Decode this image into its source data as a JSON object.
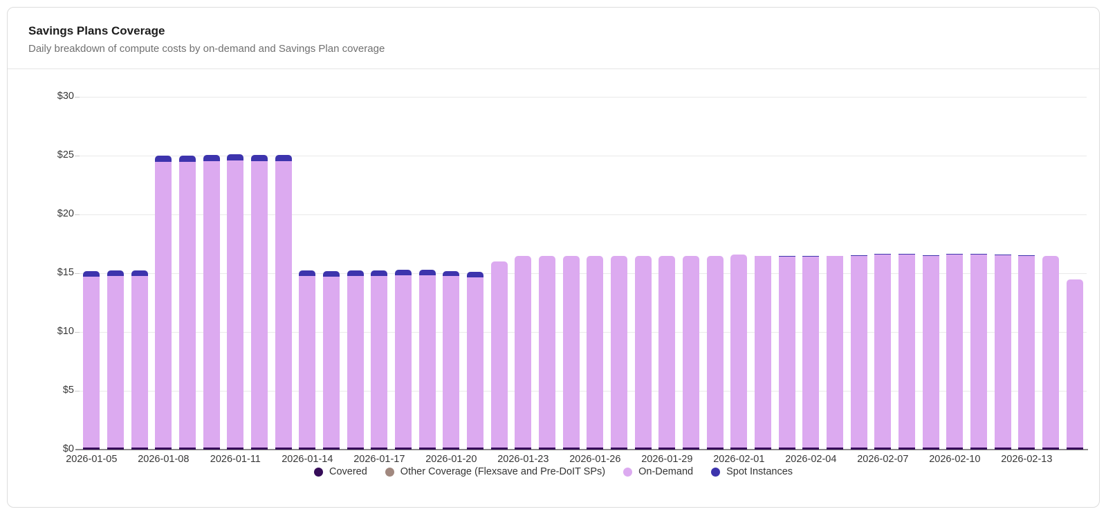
{
  "card": {
    "title": "Savings Plans Coverage",
    "subtitle": "Daily breakdown of compute costs by on-demand and Savings Plan coverage"
  },
  "legend": {
    "items": [
      {
        "label": "Covered",
        "color": "#360d59"
      },
      {
        "label": "Other Coverage (Flexsave and Pre-DoIT SPs)",
        "color": "#a1887f"
      },
      {
        "label": "On-Demand",
        "color": "#dcaaf0"
      },
      {
        "label": "Spot Instances",
        "color": "#3d34ad"
      }
    ]
  },
  "chart_data": {
    "type": "bar",
    "stacked": true,
    "title": "Savings Plans Coverage",
    "xlabel": "",
    "ylabel": "",
    "ylim": [
      0,
      30
    ],
    "yticks": [
      0,
      5,
      10,
      15,
      20,
      25,
      30
    ],
    "ytick_prefix": "$",
    "grid": true,
    "legend_position": "bottom",
    "categories": [
      "2026-01-05",
      "2026-01-06",
      "2026-01-07",
      "2026-01-08",
      "2026-01-09",
      "2026-01-10",
      "2026-01-11",
      "2026-01-12",
      "2026-01-13",
      "2026-01-14",
      "2026-01-15",
      "2026-01-16",
      "2026-01-17",
      "2026-01-18",
      "2026-01-19",
      "2026-01-20",
      "2026-01-21",
      "2026-01-22",
      "2026-01-23",
      "2026-01-24",
      "2026-01-25",
      "2026-01-26",
      "2026-01-27",
      "2026-01-28",
      "2026-01-29",
      "2026-01-30",
      "2026-01-31",
      "2026-02-01",
      "2026-02-02",
      "2026-02-03",
      "2026-02-04",
      "2026-02-05",
      "2026-02-06",
      "2026-02-07",
      "2026-02-08",
      "2026-02-09",
      "2026-02-10",
      "2026-02-11",
      "2026-02-12",
      "2026-02-13",
      "2026-02-14",
      "2026-02-15"
    ],
    "xtick_labels": [
      "2026-01-05",
      "2026-01-08",
      "2026-01-11",
      "2026-01-14",
      "2026-01-17",
      "2026-01-20",
      "2026-01-23",
      "2026-01-26",
      "2026-01-29",
      "2026-02-01",
      "2026-02-04",
      "2026-02-07",
      "2026-02-10",
      "2026-02-13"
    ],
    "xtick_every": 3,
    "series": [
      {
        "name": "Covered",
        "color": "#360d59",
        "values": [
          0.15,
          0.15,
          0.15,
          0.15,
          0.15,
          0.15,
          0.15,
          0.15,
          0.15,
          0.15,
          0.15,
          0.15,
          0.15,
          0.15,
          0.15,
          0.15,
          0.15,
          0.15,
          0.15,
          0.15,
          0.15,
          0.15,
          0.15,
          0.15,
          0.15,
          0.15,
          0.15,
          0.15,
          0.15,
          0.15,
          0.15,
          0.15,
          0.15,
          0.15,
          0.15,
          0.15,
          0.15,
          0.15,
          0.15,
          0.15,
          0.15,
          0.15
        ]
      },
      {
        "name": "Other Coverage (Flexsave and Pre-DoIT SPs)",
        "color": "#a1887f",
        "values": [
          0,
          0,
          0,
          0,
          0,
          0,
          0,
          0,
          0,
          0,
          0,
          0,
          0,
          0,
          0,
          0,
          0,
          0,
          0,
          0,
          0,
          0,
          0,
          0,
          0,
          0,
          0,
          0,
          0,
          0,
          0,
          0,
          0,
          0,
          0,
          0,
          0,
          0,
          0,
          0,
          0,
          0
        ]
      },
      {
        "name": "On-Demand",
        "color": "#dcaaf0",
        "values": [
          14.55,
          14.6,
          14.6,
          24.35,
          24.35,
          24.4,
          24.45,
          24.4,
          24.4,
          14.6,
          14.55,
          14.6,
          14.6,
          14.65,
          14.65,
          14.6,
          14.5,
          15.85,
          16.35,
          16.35,
          16.35,
          16.35,
          16.35,
          16.35,
          16.35,
          16.35,
          16.35,
          16.45,
          16.3,
          16.25,
          16.25,
          16.3,
          16.35,
          16.45,
          16.45,
          16.35,
          16.45,
          16.45,
          16.4,
          16.35,
          16.35,
          14.3
        ]
      },
      {
        "name": "Spot Instances",
        "color": "#3d34ad",
        "values": [
          0.5,
          0.5,
          0.5,
          0.5,
          0.5,
          0.5,
          0.5,
          0.5,
          0.5,
          0.5,
          0.5,
          0.5,
          0.5,
          0.5,
          0.5,
          0.45,
          0.45,
          0,
          0,
          0,
          0,
          0,
          0,
          0,
          0,
          0,
          0,
          0,
          0.05,
          0.05,
          0.05,
          0.05,
          0.05,
          0.05,
          0.05,
          0.05,
          0.05,
          0.05,
          0.05,
          0.05,
          0,
          0
        ]
      }
    ]
  }
}
